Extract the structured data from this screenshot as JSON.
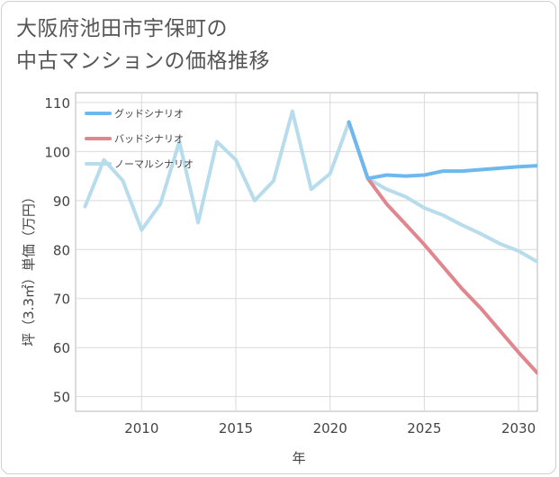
{
  "title_lines": [
    "大阪府池田市宇保町の",
    "中古マンションの価格推移"
  ],
  "chart_data": {
    "type": "line",
    "xlabel": "年",
    "ylabel": "坪（3.3㎡）単価（万円）",
    "xlim": [
      2006.5,
      2031
    ],
    "ylim": [
      47,
      112
    ],
    "xticks": [
      2010,
      2015,
      2020,
      2025,
      2030
    ],
    "yticks": [
      50,
      60,
      70,
      80,
      90,
      100,
      110
    ],
    "grid": true,
    "legend_position": "top-left",
    "series": [
      {
        "name": "グッドシナリオ",
        "color": "#6db9ef",
        "x": [
          2021,
          2022,
          2023,
          2024,
          2025,
          2026,
          2027,
          2028,
          2029,
          2030,
          2031
        ],
        "values": [
          106,
          94.5,
          95.2,
          95.0,
          95.2,
          96.0,
          96.0,
          96.3,
          96.6,
          96.9,
          97.1
        ]
      },
      {
        "name": "バッドシナリオ",
        "color": "#e0868e",
        "x": [
          2021,
          2022,
          2023,
          2024,
          2025,
          2026,
          2027,
          2028,
          2029,
          2030,
          2031
        ],
        "values": [
          106,
          94.5,
          89.3,
          85.2,
          81.0,
          76.5,
          72.0,
          68.0,
          63.5,
          59.0,
          54.8
        ]
      },
      {
        "name": "ノーマルシナリオ",
        "color": "#b7dcec",
        "x": [
          2007,
          2008,
          2009,
          2010,
          2011,
          2012,
          2013,
          2014,
          2015,
          2016,
          2017,
          2018,
          2019,
          2020,
          2021,
          2022,
          2023,
          2024,
          2025,
          2026,
          2027,
          2028,
          2029,
          2030,
          2031
        ],
        "values": [
          88.8,
          98.3,
          94.1,
          84.0,
          89.3,
          102.0,
          85.5,
          102.0,
          98.3,
          90.0,
          94.0,
          108.2,
          92.3,
          95.5,
          106.0,
          94.5,
          92.3,
          90.8,
          88.5,
          87.0,
          85.0,
          83.2,
          81.2,
          79.7,
          77.5
        ]
      }
    ]
  }
}
